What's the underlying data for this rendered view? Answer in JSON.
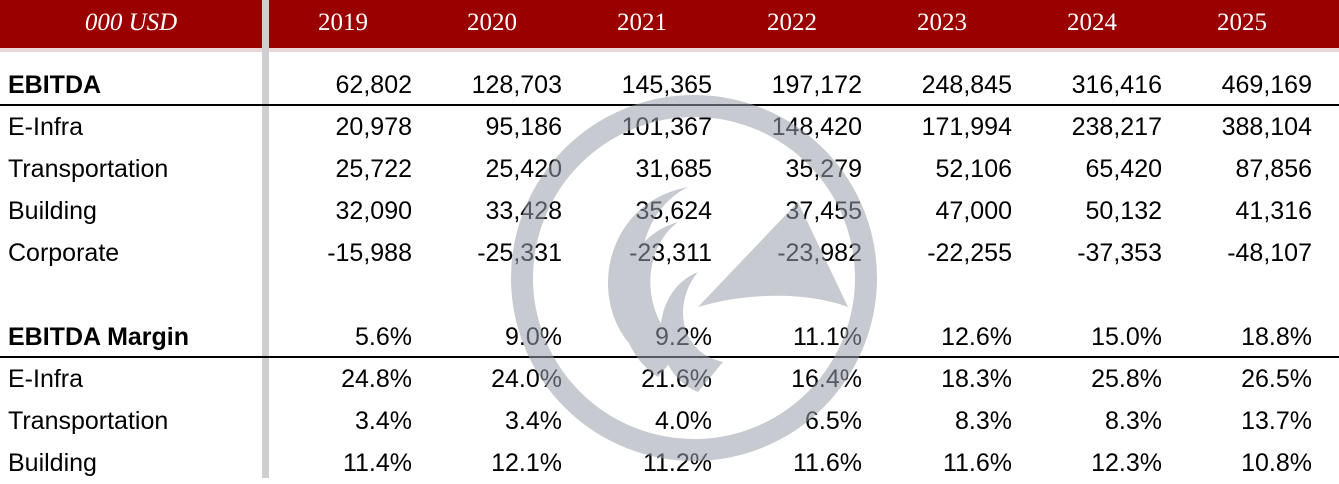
{
  "table": {
    "unit_label": "000 USD",
    "years": [
      "2019",
      "2020",
      "2021",
      "2022",
      "2023",
      "2024",
      "2025"
    ],
    "rows": [
      {
        "label": "EBITDA",
        "values": [
          "62,802",
          "128,703",
          "145,365",
          "197,172",
          "248,845",
          "316,416",
          "469,169"
        ]
      },
      {
        "label": "E-Infra",
        "values": [
          "20,978",
          "95,186",
          "101,367",
          "148,420",
          "171,994",
          "238,217",
          "388,104"
        ]
      },
      {
        "label": "Transportation",
        "values": [
          "25,722",
          "25,420",
          "31,685",
          "35,279",
          "52,106",
          "65,420",
          "87,856"
        ]
      },
      {
        "label": "Building",
        "values": [
          "32,090",
          "33,428",
          "35,624",
          "37,455",
          "47,000",
          "50,132",
          "41,316"
        ]
      },
      {
        "label": "Corporate",
        "values": [
          "-15,988",
          "-25,331",
          "-23,311",
          "-23,982",
          "-22,255",
          "-37,353",
          "-48,107"
        ]
      },
      {
        "label": "EBITDA Margin",
        "values": [
          "5.6%",
          "9.0%",
          "9.2%",
          "11.1%",
          "12.6%",
          "15.0%",
          "18.8%"
        ]
      },
      {
        "label": "E-Infra",
        "values": [
          "24.8%",
          "24.0%",
          "21.6%",
          "16.4%",
          "18.3%",
          "25.8%",
          "26.5%"
        ]
      },
      {
        "label": "Transportation",
        "values": [
          "3.4%",
          "3.4%",
          "4.0%",
          "6.5%",
          "8.3%",
          "8.3%",
          "13.7%"
        ]
      },
      {
        "label": "Building",
        "values": [
          "11.4%",
          "12.1%",
          "11.2%",
          "11.6%",
          "11.6%",
          "12.3%",
          "10.8%"
        ]
      }
    ]
  },
  "colors": {
    "header_bg": "#9b0000",
    "header_text": "#ffffff",
    "separator": "#cfcfd2",
    "watermark": "#9aa0ad"
  },
  "watermark": {
    "icon": "wave-sail-logo-icon"
  }
}
